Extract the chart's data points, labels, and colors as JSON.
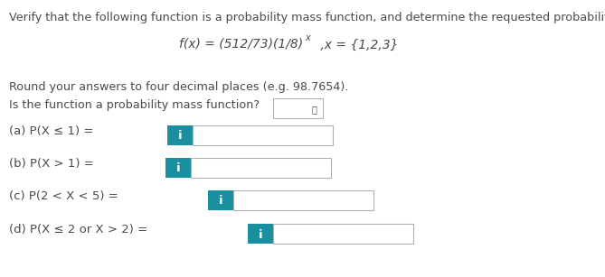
{
  "title": "Verify that the following function is a probability mass function, and determine the requested probabilities.",
  "formula_main": "f(x) = (512/73)(1/8)",
  "formula_sup": "x",
  "formula_tail": " ,x = {1,2,3}",
  "round_note": "Round your answers to four decimal places (e.g. 98.7654).",
  "pmf_question": "Is the function a probability mass function?",
  "parts": [
    "(a) P(X ≤ 1) = ",
    "(b) P(X > 1) = ",
    "(c) P(2 < X < 5) = ",
    "(d) P(X ≤ 2 or X > 2) = "
  ],
  "blue_color": "#1a8fa0",
  "box_border": "#b0b0b0",
  "text_color": "#4a4a4a",
  "bg_color": "#ffffff",
  "fig_width": 6.69,
  "fig_height": 3.07,
  "dpi": 100
}
